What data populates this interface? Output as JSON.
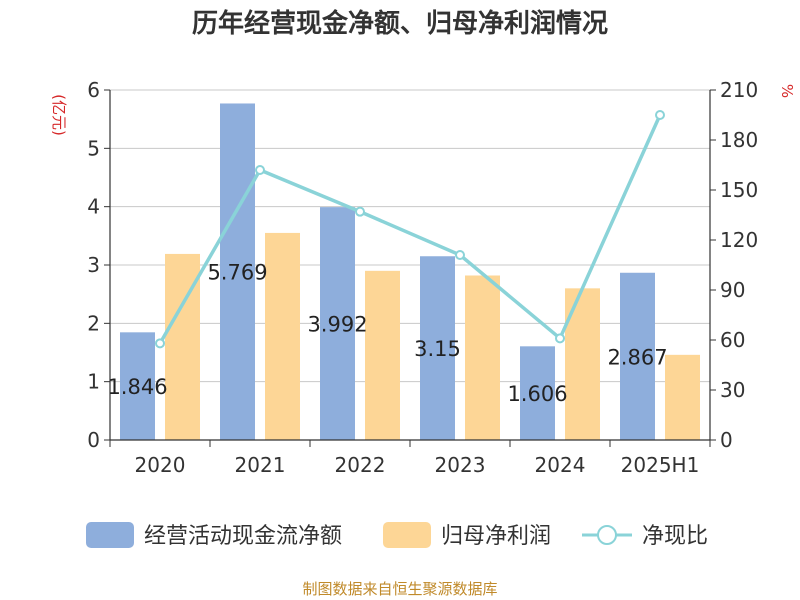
{
  "chart_data": {
    "type": "bar",
    "title": "历年经营现金净额、归母净利润情况",
    "categories": [
      "2020",
      "2021",
      "2022",
      "2023",
      "2024",
      "2025H1"
    ],
    "left_axis": {
      "unit": "(亿元)",
      "ylim": [
        0,
        6
      ],
      "ticks": [
        "0",
        "1",
        "2",
        "3",
        "4",
        "5",
        "6"
      ]
    },
    "right_axis": {
      "unit": "%",
      "ylim": [
        0,
        210
      ],
      "ticks": [
        "0",
        "30",
        "60",
        "90",
        "120",
        "150",
        "180",
        "210"
      ]
    },
    "series": [
      {
        "name": "经营活动现金流净额",
        "type": "bar",
        "axis": "left",
        "color": "#8eaedc",
        "values": [
          1.846,
          5.769,
          3.992,
          3.15,
          1.606,
          2.867
        ],
        "labels": [
          "1.846",
          "5.769",
          "3.992",
          "3.15",
          "1.606",
          "2.867"
        ]
      },
      {
        "name": "归母净利润",
        "type": "bar",
        "axis": "left",
        "color": "#fdd696",
        "values": [
          3.19,
          3.55,
          2.9,
          2.82,
          2.6,
          1.46
        ]
      },
      {
        "name": "净现比",
        "type": "line",
        "axis": "right",
        "color": "#8ad3d8",
        "values": [
          58,
          162,
          137,
          111,
          61,
          195
        ]
      }
    ],
    "grid": true,
    "legend_position": "bottom",
    "source": "制图数据来自恒生聚源数据库"
  }
}
